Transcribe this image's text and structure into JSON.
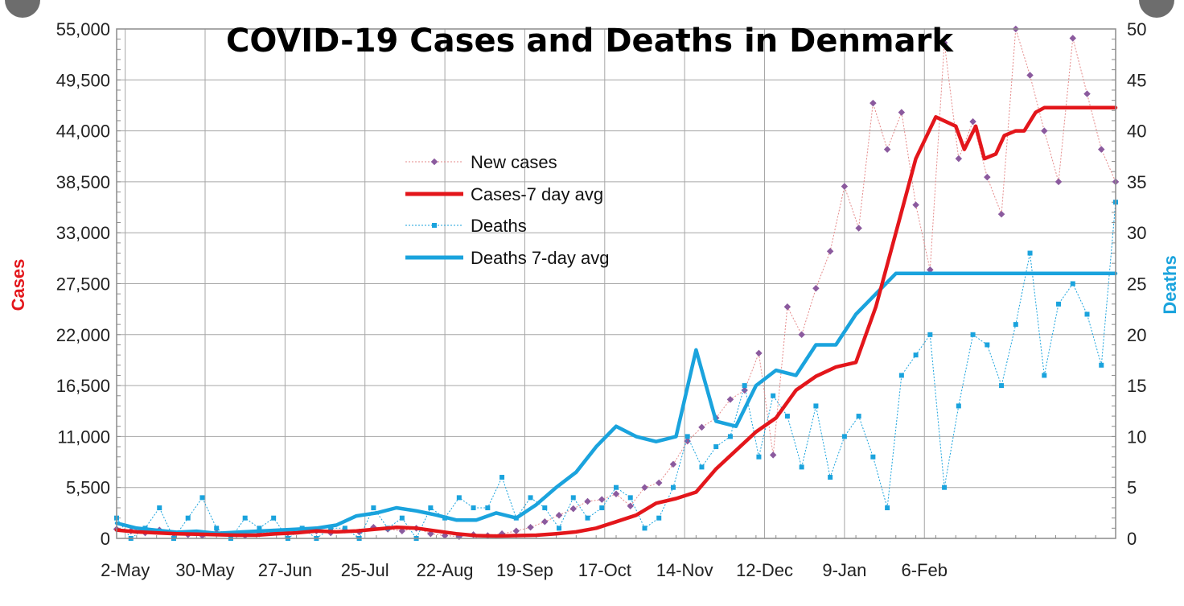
{
  "chart_data": {
    "type": "line",
    "title": "COVID-19 Cases and Deaths in Denmark",
    "ylabel_left": "Cases",
    "ylabel_right": "Deaths",
    "y_left_range": [
      0,
      55000
    ],
    "y_left_ticks": [
      "0",
      "5,500",
      "11,000",
      "16,500",
      "22,000",
      "27,500",
      "33,000",
      "38,500",
      "44,000",
      "49,500",
      "55,000"
    ],
    "y_right_range": [
      0,
      50
    ],
    "y_right_ticks": [
      "0",
      "5",
      "10",
      "15",
      "20",
      "25",
      "30",
      "35",
      "40",
      "45",
      "50"
    ],
    "x_ticks": [
      "2-May",
      "30-May",
      "27-Jun",
      "25-Jul",
      "22-Aug",
      "19-Sep",
      "17-Oct",
      "14-Nov",
      "12-Dec",
      "9-Jan",
      "6-Feb"
    ],
    "grid": true,
    "legend_position": "center",
    "legend": [
      "New cases",
      "Cases-7 day avg",
      "Deaths",
      "Deaths 7-day avg"
    ],
    "colors": {
      "new_cases": "#8b5a9e",
      "new_cases_line": "#e58a8a",
      "cases_avg": "#e3161b",
      "deaths": "#1aa3dd",
      "deaths_avg": "#1aa3dd",
      "grid": "#a6a6a6"
    },
    "series": [
      {
        "name": "Cases-7 day avg",
        "axis": "left",
        "x": [
          0,
          7,
          14,
          21,
          28,
          35,
          42,
          49,
          56,
          63,
          70,
          77,
          84,
          91,
          98,
          105,
          112,
          119,
          126,
          133,
          140,
          147,
          154,
          161,
          168,
          175,
          182,
          189,
          196,
          203,
          210,
          217,
          224,
          231,
          238,
          245,
          252,
          259,
          266,
          273,
          280,
          287,
          294,
          297,
          301,
          304,
          308,
          311,
          315,
          318,
          322,
          325,
          329,
          332,
          336,
          339,
          343,
          346,
          350
        ],
        "values": [
          900,
          700,
          600,
          500,
          450,
          400,
          350,
          350,
          500,
          600,
          800,
          700,
          800,
          1000,
          1200,
          1100,
          800,
          500,
          300,
          250,
          300,
          350,
          500,
          700,
          1100,
          1800,
          2500,
          3800,
          4300,
          5000,
          7500,
          9500,
          11500,
          13000,
          16000,
          17500,
          18500,
          19000,
          25000,
          33000,
          41000,
          45500,
          44500,
          42000,
          44500,
          41000,
          41500,
          43500,
          44000,
          44000,
          46000,
          46500,
          46500,
          46500,
          46500,
          46500,
          46500,
          46500,
          46500
        ]
      },
      {
        "name": "Deaths 7-day avg",
        "axis": "right",
        "x": [
          0,
          7,
          14,
          21,
          28,
          35,
          42,
          49,
          56,
          63,
          70,
          77,
          84,
          91,
          98,
          105,
          112,
          119,
          126,
          133,
          140,
          147,
          154,
          161,
          168,
          175,
          182,
          189,
          196,
          203,
          210,
          217,
          224,
          231,
          238,
          245,
          252,
          259,
          266,
          273,
          280,
          287,
          294,
          301,
          308,
          315,
          322,
          329,
          336,
          343,
          350
        ],
        "values": [
          1.5,
          1,
          0.8,
          0.6,
          0.7,
          0.5,
          0.6,
          0.7,
          0.8,
          0.9,
          1.0,
          1.3,
          2.2,
          2.5,
          3.0,
          2.7,
          2.3,
          1.8,
          1.8,
          2.5,
          2.0,
          3.3,
          5.0,
          6.5,
          9.0,
          11.0,
          10.0,
          9.5,
          10.0,
          18.5,
          11.5,
          11.0,
          15.0,
          16.5,
          16.0,
          19.0,
          19.0,
          22.0,
          24.0,
          26.0,
          26.0,
          26.0,
          26.0,
          26.0,
          26.0,
          26.0,
          26.0,
          26.0,
          26.0,
          26.0,
          26.0
        ]
      },
      {
        "name": "New cases",
        "axis": "left",
        "x": [
          0,
          5,
          10,
          15,
          20,
          25,
          30,
          35,
          40,
          45,
          50,
          55,
          60,
          65,
          70,
          75,
          80,
          85,
          90,
          95,
          100,
          105,
          110,
          115,
          120,
          125,
          130,
          135,
          140,
          145,
          150,
          155,
          160,
          165,
          170,
          175,
          180,
          185,
          190,
          195,
          200,
          205,
          210,
          215,
          220,
          225,
          230,
          235,
          240,
          245,
          250,
          255,
          260,
          265,
          270,
          275,
          280,
          285,
          290,
          295,
          300,
          305,
          310,
          315,
          320,
          325,
          330,
          335,
          340,
          345,
          350
        ],
        "values": [
          1000,
          800,
          600,
          900,
          500,
          400,
          300,
          600,
          400,
          300,
          500,
          700,
          600,
          900,
          800,
          600,
          900,
          700,
          1200,
          1000,
          800,
          1100,
          500,
          300,
          200,
          400,
          300,
          500,
          800,
          1200,
          1800,
          2500,
          3200,
          4000,
          4200,
          4800,
          3500,
          5500,
          6000,
          8000,
          10500,
          12000,
          13000,
          15000,
          16000,
          20000,
          9000,
          25000,
          22000,
          27000,
          31000,
          38000,
          33500,
          47000,
          42000,
          46000,
          36000,
          29000,
          53500,
          41000,
          45000,
          39000,
          35000,
          55000,
          50000,
          44000,
          38500,
          54000,
          48000,
          42000,
          38500
        ]
      },
      {
        "name": "Deaths",
        "axis": "right",
        "x": [
          0,
          5,
          10,
          15,
          20,
          25,
          30,
          35,
          40,
          45,
          50,
          55,
          60,
          65,
          70,
          75,
          80,
          85,
          90,
          95,
          100,
          105,
          110,
          115,
          120,
          125,
          130,
          135,
          140,
          145,
          150,
          155,
          160,
          165,
          170,
          175,
          180,
          185,
          190,
          195,
          200,
          205,
          210,
          215,
          220,
          225,
          230,
          235,
          240,
          245,
          250,
          255,
          260,
          265,
          270,
          275,
          280,
          285,
          290,
          295,
          300,
          305,
          310,
          315,
          320,
          325,
          330,
          335,
          340,
          345,
          350
        ],
        "values": [
          2,
          0,
          1,
          3,
          0,
          2,
          4,
          1,
          0,
          2,
          1,
          2,
          0,
          1,
          0,
          1,
          1,
          0,
          3,
          1,
          2,
          0,
          3,
          2,
          4,
          3,
          3,
          6,
          2,
          4,
          3,
          1,
          4,
          2,
          3,
          5,
          4,
          1,
          2,
          5,
          10,
          7,
          9,
          10,
          15,
          8,
          14,
          12,
          7,
          13,
          6,
          10,
          12,
          8,
          3,
          16,
          18,
          20,
          5,
          13,
          20,
          19,
          15,
          21,
          28,
          16,
          23,
          25,
          22,
          17,
          33
        ]
      }
    ]
  }
}
